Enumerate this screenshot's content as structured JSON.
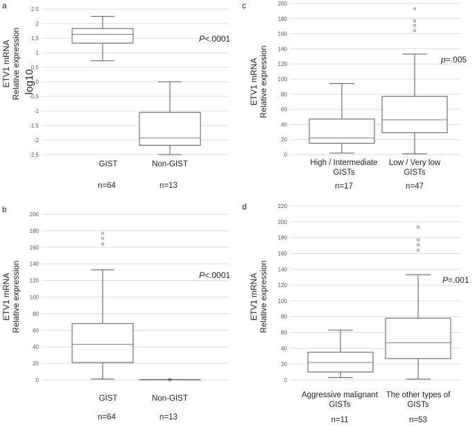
{
  "chart_data": [
    {
      "type": "box",
      "panel": "a",
      "ylabel_line1": "ETV1   mRNA",
      "ylabel_line2": "Relative expression",
      "scale_label": "log10",
      "ylim": [
        -2.5,
        2.5
      ],
      "yticks": [
        -2.5,
        -2,
        -1.5,
        -1,
        -0.5,
        0,
        0.5,
        1,
        1.5,
        2,
        2.5
      ],
      "ytick_labels": [
        "-2.5",
        "-2",
        "-1.5",
        "-1",
        "-0.5",
        "0",
        "0.5",
        "1",
        "1.5",
        "2",
        "2.5"
      ],
      "p_prefix": "P",
      "p_value": "<.0001",
      "boxes": [
        {
          "name": "GIST",
          "name_line2": "",
          "n": "n=64",
          "min": 0.72,
          "q1": 1.33,
          "median": 1.63,
          "q3": 1.83,
          "max": 2.25,
          "outliers": [],
          "mean": null
        },
        {
          "name": "Non-GIST",
          "name_line2": "",
          "n": "n=13",
          "min": -2.5,
          "q1": -2.18,
          "median": -1.93,
          "q3": -1.05,
          "max": 0.0,
          "outliers": [],
          "mean": null
        }
      ]
    },
    {
      "type": "box",
      "panel": "b",
      "ylabel_line1": "ETV1   mRNA",
      "ylabel_line2": "Relative expression",
      "ylim": [
        0,
        200
      ],
      "yticks": [
        0,
        20,
        40,
        60,
        80,
        100,
        120,
        140,
        160,
        180,
        200
      ],
      "ytick_labels": [
        "0",
        "20",
        "40",
        "60",
        "80",
        "100",
        "120",
        "140",
        "160",
        "180",
        "200"
      ],
      "p_prefix": "P",
      "p_value": "<.0001",
      "boxes": [
        {
          "name": "GIST",
          "name_line2": "",
          "n": "n=64",
          "min": 1,
          "q1": 21,
          "median": 43,
          "q3": 68,
          "max": 133,
          "outliers": [
            164,
            171,
            177
          ],
          "mean": null
        },
        {
          "name": "Non-GIST",
          "name_line2": "",
          "n": "n=13",
          "min": 0,
          "q1": 0,
          "median": 0,
          "q3": 0.5,
          "max": 0.5,
          "outliers": [],
          "mean": 0.3
        }
      ]
    },
    {
      "type": "box",
      "panel": "c",
      "ylabel_line1": "ETV1   mRNA",
      "ylabel_line2": "Relative expression",
      "ylim": [
        0,
        200
      ],
      "yticks": [
        0,
        20,
        40,
        60,
        80,
        100,
        120,
        140,
        160,
        180,
        200
      ],
      "ytick_labels": [
        "0",
        "20",
        "40",
        "60",
        "80",
        "100",
        "120",
        "140",
        "160",
        "180",
        "200"
      ],
      "p_prefix": "p",
      "p_value": "=.005",
      "boxes": [
        {
          "name": "High / Intermediate",
          "name_line2": "GISTs",
          "n": "n=17",
          "min": 2,
          "q1": 15,
          "median": 22,
          "q3": 47,
          "max": 94,
          "outliers": [],
          "mean": null
        },
        {
          "name": "Low / Very low",
          "name_line2": "GISTs",
          "n": "n=47",
          "min": 1,
          "q1": 29,
          "median": 46,
          "q3": 77,
          "max": 133,
          "outliers": [
            164,
            171,
            177,
            193
          ],
          "mean": null
        }
      ]
    },
    {
      "type": "box",
      "panel": "d",
      "ylabel_line1": "ETV1   mRNA",
      "ylabel_line2": "Relative expression",
      "ylim": [
        0,
        220
      ],
      "yticks": [
        0,
        20,
        40,
        60,
        80,
        100,
        120,
        140,
        160,
        180,
        200,
        220
      ],
      "ytick_labels": [
        "0",
        "20",
        "40",
        "60",
        "80",
        "100",
        "120",
        "140",
        "160",
        "180",
        "200",
        "220"
      ],
      "p_prefix": "P",
      "p_value": "=.001",
      "boxes": [
        {
          "name": "Aggressive malignant",
          "name_line2": "GISTs",
          "n": "n=11",
          "min": 3,
          "q1": 10,
          "median": 22,
          "q3": 35,
          "max": 63,
          "outliers": [],
          "mean": null
        },
        {
          "name": "The other types of",
          "name_line2": "GISTs",
          "n": "n=53",
          "min": 1,
          "q1": 27,
          "median": 47,
          "q3": 78,
          "max": 133,
          "outliers": [
            164,
            171,
            177,
            193
          ],
          "mean": null
        }
      ]
    }
  ]
}
